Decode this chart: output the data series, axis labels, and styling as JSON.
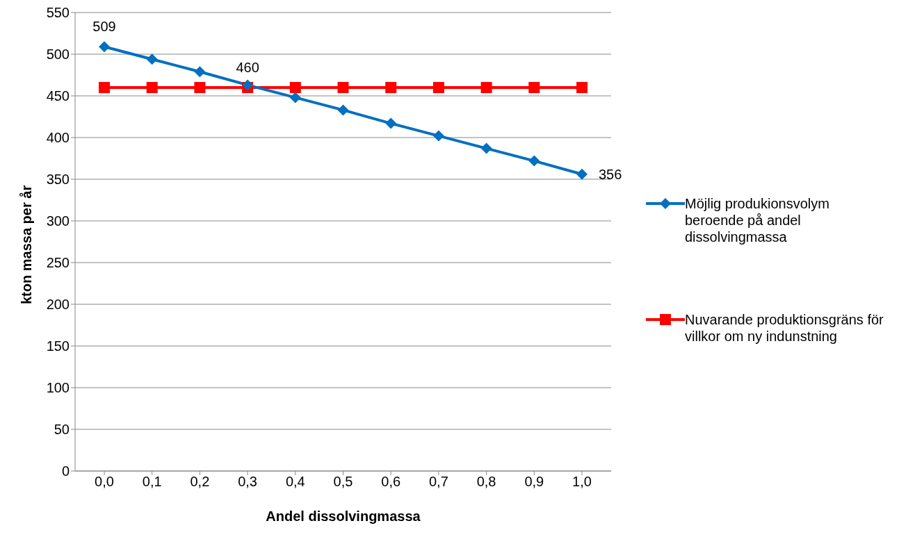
{
  "chart_data": {
    "type": "line",
    "xlabel": "Andel dissolvingmassa",
    "ylabel": "kton massa per år",
    "categories": [
      "0,0",
      "0,1",
      "0,2",
      "0,3",
      "0,4",
      "0,5",
      "0,6",
      "0,7",
      "0,8",
      "0,9",
      "1,0"
    ],
    "series": [
      {
        "name": "Möjlig produkionsvolym beroende på andel dissolvingmassa",
        "color": "#0070c0",
        "marker": "diamond",
        "values": [
          509,
          494,
          479,
          463,
          448,
          433,
          417,
          402,
          387,
          372,
          356
        ],
        "value_labels": [
          "509",
          null,
          null,
          null,
          null,
          null,
          null,
          null,
          null,
          null,
          "356"
        ]
      },
      {
        "name": "Nuvarande produktionsgräns för villkor om ny indunstning",
        "color": "#ff0000",
        "marker": "square",
        "values": [
          460,
          460,
          460,
          460,
          460,
          460,
          460,
          460,
          460,
          460,
          460
        ],
        "value_labels": [
          null,
          null,
          null,
          "460",
          null,
          null,
          null,
          null,
          null,
          null,
          null
        ]
      }
    ],
    "ylim": [
      0,
      550
    ],
    "yticks": [
      0,
      50,
      100,
      150,
      200,
      250,
      300,
      350,
      400,
      450,
      500,
      550
    ],
    "grid": "y",
    "legend": "right",
    "line_style": "solid"
  }
}
